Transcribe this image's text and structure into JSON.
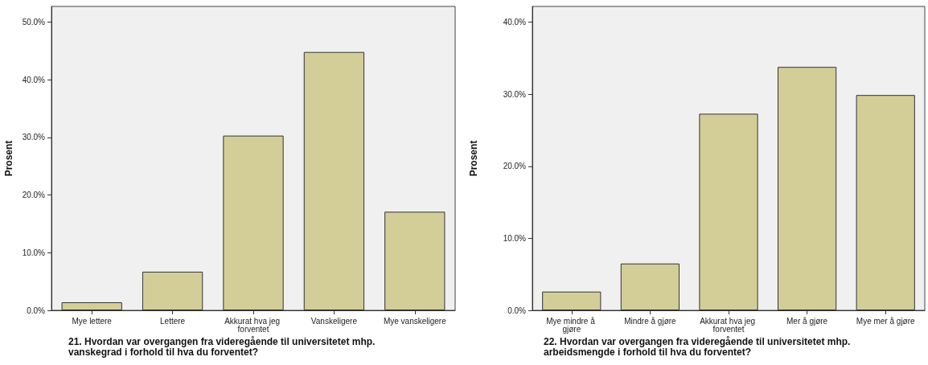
{
  "chart_data": [
    {
      "type": "bar",
      "xlabel": "21. Hvordan var overgangen fra videregående til universitetet mhp. vanskegrad i forhold til hva du forventet?",
      "ylabel": "Prosent",
      "categories": [
        "Mye lettere",
        "Lettere",
        "Akkurat hva jeg forventet",
        "Vanskeligere",
        "Mye vanskeligere"
      ],
      "values": [
        1.4,
        6.7,
        30.3,
        44.8,
        17.1
      ],
      "color": "#d3ce97",
      "ylim": [
        0,
        52.7
      ],
      "yticks": [
        {
          "value": 0,
          "label": "0.0%"
        },
        {
          "value": 10,
          "label": "10.0%"
        },
        {
          "value": 20,
          "label": "20.0%"
        },
        {
          "value": 30,
          "label": "30.0%"
        },
        {
          "value": 40,
          "label": "40.0%"
        },
        {
          "value": 50,
          "label": "50.0%"
        }
      ],
      "grid": false
    },
    {
      "type": "bar",
      "xlabel": "22. Hvordan var overgangen fra videregående til universitetet mhp. arbeidsmengde i forhold til hva du forventet?",
      "ylabel": "Prosent",
      "categories": [
        "Mye mindre å gjøre",
        "Mindre å gjøre",
        "Akkurat hva jeg forventet",
        "Mer å gjøre",
        "Mye mer å gjøre"
      ],
      "values": [
        2.6,
        6.5,
        27.3,
        33.8,
        29.9
      ],
      "color": "#d3ce97",
      "ylim": [
        0,
        42.2
      ],
      "yticks": [
        {
          "value": 0,
          "label": "0.0%"
        },
        {
          "value": 10,
          "label": "10.0%"
        },
        {
          "value": 20,
          "label": "20.0%"
        },
        {
          "value": 30,
          "label": "30.0%"
        },
        {
          "value": 40,
          "label": "40.0%"
        }
      ],
      "grid": false
    }
  ]
}
